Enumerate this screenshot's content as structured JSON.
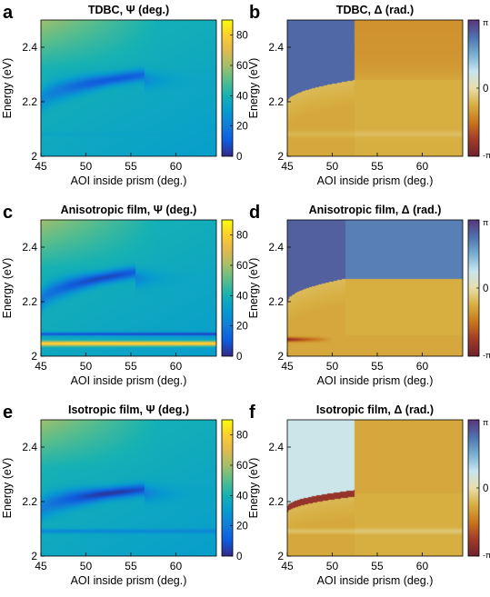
{
  "figure": {
    "panels": [
      {
        "letter": "a",
        "title": "TDBC, Ψ (deg.)",
        "quantity": "psi",
        "sample": "tdbc"
      },
      {
        "letter": "b",
        "title": "TDBC, Δ (rad.)",
        "quantity": "delta",
        "sample": "tdbc"
      },
      {
        "letter": "c",
        "title": "Anisotropic film, Ψ (deg.)",
        "quantity": "psi",
        "sample": "aniso"
      },
      {
        "letter": "d",
        "title": "Anisotropic film, Δ (rad.)",
        "quantity": "delta",
        "sample": "aniso"
      },
      {
        "letter": "e",
        "title": "Isotropic film, Ψ (deg.)",
        "quantity": "psi",
        "sample": "iso"
      },
      {
        "letter": "f",
        "title": "Isotropic film, Δ (rad.)",
        "quantity": "delta",
        "sample": "iso"
      }
    ],
    "psi_colorbar_ticks": [
      "0",
      "20",
      "40",
      "60",
      "80"
    ],
    "delta_colorbar_ticks": [
      "π",
      "0",
      "-π"
    ]
  },
  "chart_data": {
    "type": "heatmap",
    "xlabel": "AOI inside prism (deg.)",
    "ylabel": "Energy (eV)",
    "xlim": [
      45,
      64.5
    ],
    "ylim": [
      2.0,
      2.5
    ],
    "xticks": [
      45,
      50,
      55,
      60
    ],
    "yticks": [
      2,
      2.2,
      2.4
    ],
    "xtick_labels": [
      "45",
      "50",
      "55",
      "60"
    ],
    "ytick_labels": [
      "2",
      "2.2",
      "2.4"
    ],
    "psi_colormap": "parula",
    "psi_range": [
      0,
      90
    ],
    "delta_colormap": "diverging-purple-blue-white-gold-red",
    "delta_range": [
      -3.14159,
      3.14159
    ],
    "features": {
      "tdbc": {
        "minimum_aoi": 52.5,
        "minimum_energy": 2.28,
        "min_psi": 14,
        "branch_energy_at_45": 2.2,
        "band_energy": 2.08,
        "band_psi": 33
      },
      "aniso": {
        "minimum_aoi": 51.5,
        "minimum_energy": 2.285,
        "min_psi": 10,
        "branch_energy_at_45": 2.2,
        "band_energy": 2.045,
        "band_psi": 82,
        "dark_band_energy": 2.08
      },
      "iso": {
        "minimum_aoi": 52.5,
        "minimum_energy": 2.23,
        "min_psi": 8,
        "branch_energy_at_45": 2.17,
        "band_energy": 2.09,
        "band_psi": 22
      }
    }
  }
}
